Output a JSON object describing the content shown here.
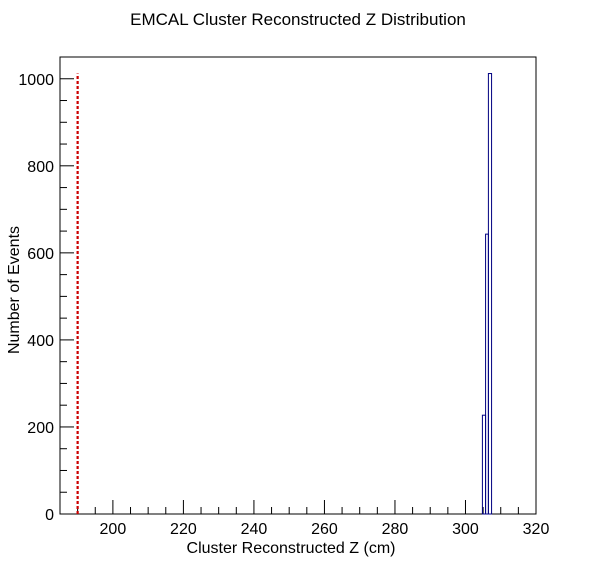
{
  "chart_data": {
    "type": "histogram",
    "title": "EMCAL Cluster Reconstructed Z Distribution",
    "xlabel": "Cluster Reconstructed Z (cm)",
    "ylabel": "Number of Events",
    "xlim": [
      185,
      320
    ],
    "ylim": [
      0,
      1050
    ],
    "x_ticks": [
      200,
      220,
      240,
      260,
      280,
      300,
      320
    ],
    "y_ticks": [
      0,
      200,
      400,
      600,
      800,
      1000
    ],
    "grid": false,
    "series": [
      {
        "bins": [
          {
            "x0": 304.8,
            "x1": 305.7,
            "count": 227
          },
          {
            "x0": 305.7,
            "x1": 306.5,
            "count": 643
          },
          {
            "x0": 306.5,
            "x1": 307.4,
            "count": 1012
          }
        ],
        "color": "#000080"
      }
    ],
    "reference_line": {
      "x": 190,
      "y_top": 1012,
      "color": "#cc0000",
      "style": "dashed"
    }
  }
}
